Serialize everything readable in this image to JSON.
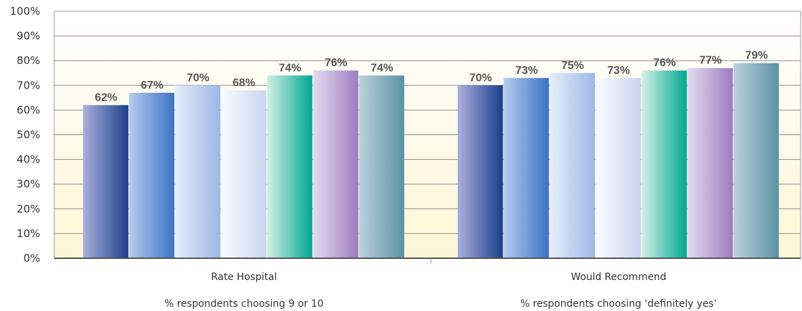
{
  "chart_data": {
    "type": "bar",
    "categories": [
      {
        "label": "Rate Hospital",
        "sublabel": "% respondents choosing 9 or 10"
      },
      {
        "label": "Would Recommend",
        "sublabel": "% respondents choosing ‘definitely yes’"
      }
    ],
    "series_values": [
      [
        62,
        70
      ],
      [
        67,
        73
      ],
      [
        70,
        75
      ],
      [
        68,
        73
      ],
      [
        74,
        76
      ],
      [
        76,
        77
      ],
      [
        74,
        79
      ]
    ],
    "data_labels": [
      [
        "62%",
        "70%"
      ],
      [
        "67%",
        "73%"
      ],
      [
        "70%",
        "75%"
      ],
      [
        "68%",
        "73%"
      ],
      [
        "74%",
        "76%"
      ],
      [
        "76%",
        "77%"
      ],
      [
        "74%",
        "79%"
      ]
    ],
    "series_colors": [
      [
        "#a9b0dc",
        "#1c3e8c"
      ],
      [
        "#b5cdf0",
        "#3a72c4"
      ],
      [
        "#e6eefb",
        "#9cb8e6"
      ],
      [
        "#fafbff",
        "#c9d6f0"
      ],
      [
        "#d3f0e6",
        "#00a892"
      ],
      [
        "#e3dcf0",
        "#9e7cc0"
      ],
      [
        "#bcd2dc",
        "#5b92a4"
      ]
    ],
    "y_ticks": [
      "0%",
      "10%",
      "20%",
      "30%",
      "40%",
      "50%",
      "60%",
      "70%",
      "80%",
      "90%",
      "100%"
    ],
    "ylim": [
      0,
      100
    ],
    "grid": true,
    "background_gradient": [
      "#ffffff",
      "#fdf6d6"
    ]
  }
}
